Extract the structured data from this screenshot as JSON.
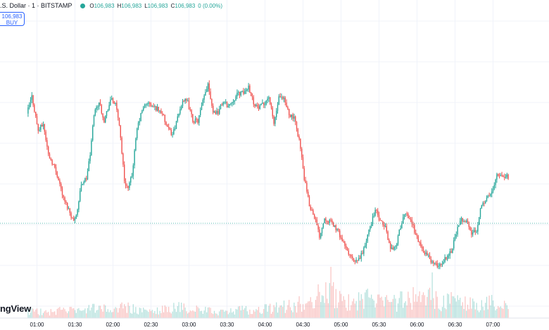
{
  "header": {
    "title": ".S. Dollar · 1 · BITSTAMP",
    "market_dot_color": "#26a69a",
    "ohlc": [
      {
        "k": "O",
        "v": "106,983"
      },
      {
        "k": "H",
        "v": "106,983"
      },
      {
        "k": "L",
        "v": "106,983"
      },
      {
        "k": "C",
        "v": "106,983"
      },
      {
        "k": "",
        "v": "0 (0.00%)"
      }
    ]
  },
  "buy_box": {
    "price": "106,983",
    "label": "BUY"
  },
  "watermark": "ngView",
  "colors": {
    "up": "#26a69a",
    "down": "#ef5350",
    "grid": "#f0f3fa",
    "axis_text": "#131722"
  },
  "chart_data": {
    "type": "candlestick",
    "x_axis": {
      "ticks": [
        "01:00",
        "01:30",
        "02:00",
        "02:30",
        "03:00",
        "03:30",
        "04:00",
        "04:30",
        "05:00",
        "05:30",
        "06:00",
        "06:30",
        "07:00"
      ],
      "range": [
        "00:53",
        "07:06"
      ],
      "tick_positions_index": [
        0,
        30,
        60,
        90,
        120,
        150,
        180,
        210,
        240,
        270,
        300,
        330,
        360
      ]
    },
    "y_axis": {
      "range": [
        1000,
        230
      ],
      "unit": "relative price (axis not shown)"
    },
    "grid": true,
    "horizontal_line": {
      "value": 318,
      "style": "dotted",
      "color": "#26a69a"
    },
    "price_anchors": [
      [
        -7,
        750
      ],
      [
        -3,
        800
      ],
      [
        2,
        700
      ],
      [
        6,
        720
      ],
      [
        10,
        630
      ],
      [
        14,
        600
      ],
      [
        18,
        560
      ],
      [
        22,
        500
      ],
      [
        26,
        470
      ],
      [
        30,
        435
      ],
      [
        33,
        470
      ],
      [
        36,
        545
      ],
      [
        40,
        560
      ],
      [
        43,
        630
      ],
      [
        46,
        750
      ],
      [
        50,
        785
      ],
      [
        54,
        730
      ],
      [
        57,
        765
      ],
      [
        60,
        795
      ],
      [
        63,
        775
      ],
      [
        66,
        720
      ],
      [
        70,
        555
      ],
      [
        73,
        530
      ],
      [
        76,
        570
      ],
      [
        80,
        705
      ],
      [
        84,
        760
      ],
      [
        88,
        782
      ],
      [
        92,
        770
      ],
      [
        96,
        765
      ],
      [
        100,
        750
      ],
      [
        104,
        705
      ],
      [
        108,
        690
      ],
      [
        112,
        735
      ],
      [
        116,
        790
      ],
      [
        120,
        782
      ],
      [
        124,
        730
      ],
      [
        128,
        728
      ],
      [
        132,
        785
      ],
      [
        136,
        840
      ],
      [
        140,
        755
      ],
      [
        144,
        755
      ],
      [
        148,
        785
      ],
      [
        152,
        772
      ],
      [
        156,
        790
      ],
      [
        160,
        810
      ],
      [
        164,
        810
      ],
      [
        168,
        830
      ],
      [
        172,
        782
      ],
      [
        176,
        765
      ],
      [
        180,
        778
      ],
      [
        184,
        800
      ],
      [
        188,
        720
      ],
      [
        192,
        795
      ],
      [
        196,
        790
      ],
      [
        200,
        750
      ],
      [
        204,
        735
      ],
      [
        208,
        675
      ],
      [
        212,
        560
      ],
      [
        216,
        482
      ],
      [
        220,
        450
      ],
      [
        224,
        392
      ],
      [
        228,
        445
      ],
      [
        232,
        435
      ],
      [
        236,
        420
      ],
      [
        240,
        395
      ],
      [
        244,
        360
      ],
      [
        248,
        335
      ],
      [
        252,
        312
      ],
      [
        256,
        328
      ],
      [
        260,
        365
      ],
      [
        264,
        420
      ],
      [
        268,
        470
      ],
      [
        272,
        432
      ],
      [
        276,
        418
      ],
      [
        280,
        355
      ],
      [
        284,
        360
      ],
      [
        288,
        420
      ],
      [
        292,
        460
      ],
      [
        296,
        440
      ],
      [
        300,
        397
      ],
      [
        304,
        360
      ],
      [
        308,
        340
      ],
      [
        312,
        320
      ],
      [
        316,
        306
      ],
      [
        320,
        310
      ],
      [
        324,
        330
      ],
      [
        328,
        349
      ],
      [
        332,
        403
      ],
      [
        336,
        440
      ],
      [
        340,
        437
      ],
      [
        344,
        399
      ],
      [
        348,
        410
      ],
      [
        352,
        488
      ],
      [
        356,
        500
      ],
      [
        360,
        520
      ],
      [
        364,
        575
      ],
      [
        368,
        570
      ],
      [
        372,
        565
      ]
    ],
    "volume_profile": [
      [
        -7,
        10
      ],
      [
        10,
        8
      ],
      [
        22,
        12
      ],
      [
        34,
        9
      ],
      [
        46,
        14
      ],
      [
        58,
        11
      ],
      [
        70,
        16
      ],
      [
        80,
        10
      ],
      [
        90,
        9
      ],
      [
        100,
        12
      ],
      [
        110,
        15
      ],
      [
        120,
        13
      ],
      [
        130,
        11
      ],
      [
        140,
        9
      ],
      [
        150,
        8
      ],
      [
        160,
        12
      ],
      [
        170,
        10
      ],
      [
        180,
        13
      ],
      [
        190,
        15
      ],
      [
        200,
        17
      ],
      [
        210,
        22
      ],
      [
        220,
        18
      ],
      [
        230,
        40
      ],
      [
        240,
        24
      ],
      [
        250,
        20
      ],
      [
        260,
        28
      ],
      [
        270,
        22
      ],
      [
        280,
        20
      ],
      [
        290,
        26
      ],
      [
        300,
        30
      ],
      [
        310,
        28
      ],
      [
        320,
        22
      ],
      [
        330,
        24
      ],
      [
        340,
        20
      ],
      [
        350,
        16
      ],
      [
        360,
        22
      ],
      [
        372,
        14
      ]
    ],
    "volume_spikes": [
      [
        222,
        48
      ],
      [
        232,
        73
      ],
      [
        243,
        26
      ],
      [
        256,
        34
      ],
      [
        266,
        25
      ],
      [
        282,
        33
      ],
      [
        292,
        18
      ],
      [
        302,
        38
      ],
      [
        312,
        65
      ]
    ]
  }
}
